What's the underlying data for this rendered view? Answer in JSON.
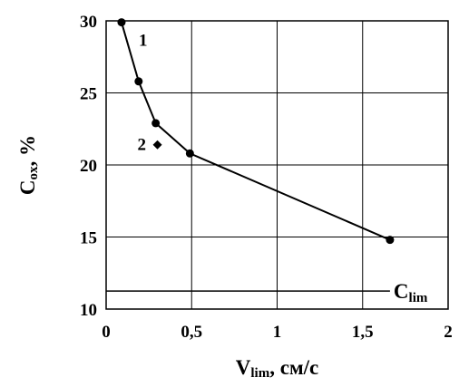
{
  "chart_data": {
    "type": "line",
    "xlabel": {
      "main": "V",
      "sub": "lim",
      "rest": ", см/с"
    },
    "ylabel": {
      "main": "C",
      "sub": "ox",
      "rest": ", %"
    },
    "xlim": [
      0,
      2
    ],
    "ylim": [
      10,
      30
    ],
    "x_ticks": [
      0,
      0.5,
      1,
      1.5,
      2
    ],
    "x_tick_labels": [
      "0",
      "0,5",
      "1",
      "1,5",
      "2"
    ],
    "y_ticks": [
      10,
      15,
      20,
      25,
      30
    ],
    "y_tick_labels": [
      "10",
      "15",
      "20",
      "25",
      "30"
    ],
    "grid": true,
    "series": [
      {
        "name": "1",
        "marker": "circle",
        "x": [
          0.09,
          0.19,
          0.29,
          0.49,
          1.66
        ],
        "y": [
          29.9,
          25.8,
          22.9,
          20.8,
          14.8
        ]
      },
      {
        "name": "2",
        "marker": "diamond",
        "x": [
          0.3
        ],
        "y": [
          21.4
        ]
      }
    ],
    "reference_line": {
      "label": {
        "main": "C",
        "sub": "lim"
      },
      "y": 11.25,
      "x_range": [
        0,
        1.66
      ]
    }
  }
}
